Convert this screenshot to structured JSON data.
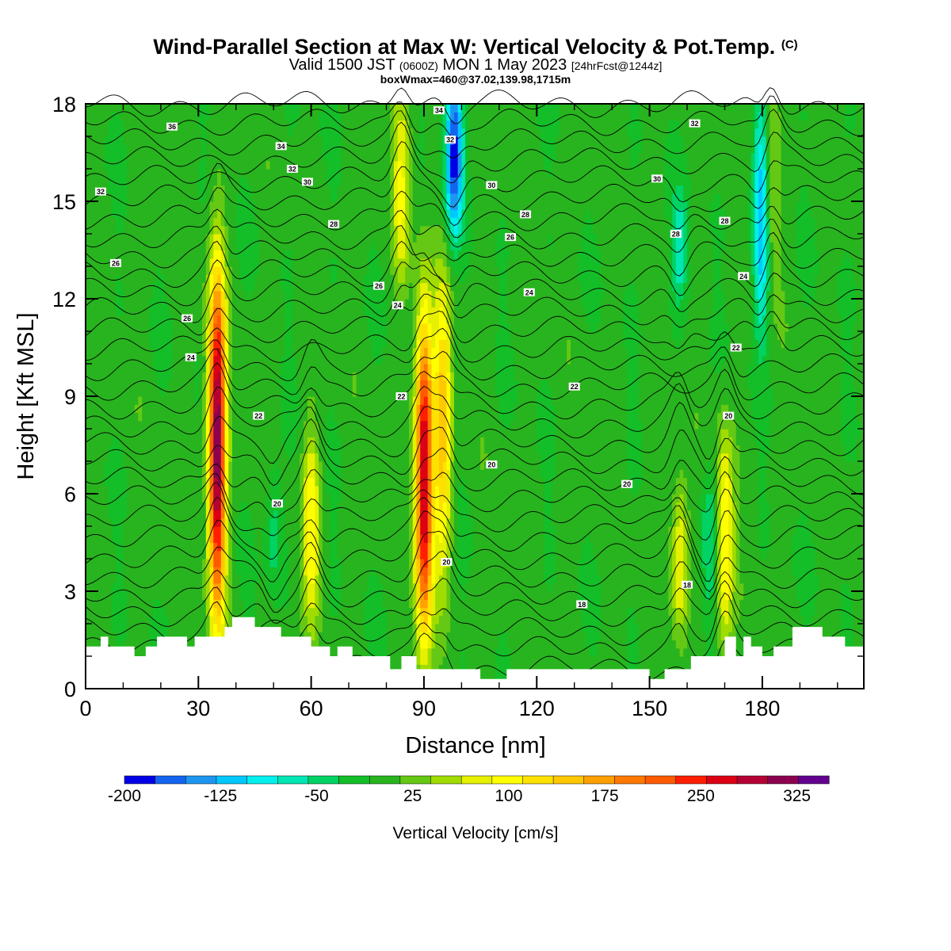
{
  "header": {
    "title": "Wind-Parallel Section at Max W: Vertical Velocity & Pot.Temp.",
    "title_tag": "(C)",
    "valid_a": "Valid 1500 JST",
    "valid_z": "(0600Z)",
    "valid_b": "MON 1 May 2023",
    "valid_fcst": "[24hrFcst@1244z]",
    "subtitle": "boxWmax=460@37.02,139.98,1715m"
  },
  "chart_data": {
    "type": "heatmap",
    "xlabel": "Distance [nm]",
    "ylabel": "Height [Kft MSL]",
    "xlim": [
      0,
      207
    ],
    "ylim": [
      0,
      18
    ],
    "xticks": [
      0,
      30,
      60,
      90,
      120,
      150,
      180
    ],
    "yticks": [
      0,
      3,
      6,
      9,
      12,
      15,
      18
    ],
    "colorbar": {
      "label": "Vertical Velocity [cm/s]",
      "tick_values": [
        -200,
        -125,
        -50,
        25,
        100,
        175,
        250,
        325
      ],
      "tick_labels": [
        "-200",
        "-125",
        "-50",
        "25",
        "100",
        "175",
        "250",
        "325"
      ],
      "min": -200,
      "max": 350,
      "step": 25,
      "colors": [
        "#0000e6",
        "#1464f0",
        "#1e96f0",
        "#00c8ff",
        "#00f0f0",
        "#00e6b4",
        "#00d264",
        "#14be28",
        "#28b41e",
        "#64c814",
        "#a0dc00",
        "#e6f000",
        "#ffff00",
        "#ffe100",
        "#ffc800",
        "#ffa000",
        "#ff7800",
        "#ff5a00",
        "#ff1e00",
        "#dc0014",
        "#b40032",
        "#8c0050",
        "#640090"
      ]
    },
    "updrafts": [
      {
        "x": 35,
        "z_bottom": 2.5,
        "z_top": 13.2,
        "peak": 340,
        "center_z": 7.5
      },
      {
        "x": 90,
        "z_bottom": 1.0,
        "z_top": 11.0,
        "peak": 310,
        "center_z": 6.5
      },
      {
        "x": 95,
        "z_bottom": 1.5,
        "z_top": 10.5,
        "peak": 150,
        "center_z": 8.0
      },
      {
        "x": 84,
        "z_bottom": 12.0,
        "z_top": 18.0,
        "peak": 90,
        "center_z": 15.5
      },
      {
        "x": 60,
        "z_bottom": 2.0,
        "z_top": 8.0,
        "peak": 110,
        "center_z": 5.0
      },
      {
        "x": 170,
        "z_bottom": 1.5,
        "z_top": 8.5,
        "peak": 120,
        "center_z": 4.5
      },
      {
        "x": 158,
        "z_bottom": 2.0,
        "z_top": 7.0,
        "peak": 100,
        "center_z": 4.0
      },
      {
        "x": 182,
        "z_bottom": 11.0,
        "z_top": 18.0,
        "peak": 80,
        "center_z": 15.5
      }
    ],
    "downdrafts": [
      {
        "x": 98,
        "z_bottom": 13.0,
        "z_top": 18.0,
        "peak": -190,
        "center_z": 16.5
      },
      {
        "x": 180,
        "z_bottom": 11.0,
        "z_top": 18.0,
        "peak": -150,
        "center_z": 14.5
      },
      {
        "x": 158,
        "z_bottom": 11.5,
        "z_top": 15.0,
        "peak": -70,
        "center_z": 13.5
      },
      {
        "x": 166,
        "z_bottom": 2.5,
        "z_top": 7.0,
        "peak": -60,
        "center_z": 4.5
      },
      {
        "x": 50,
        "z_bottom": 3.0,
        "z_top": 7.0,
        "peak": -50,
        "center_z": 5.0
      }
    ],
    "theta_labels": [
      {
        "text": "36",
        "x": 23,
        "z": 17.3
      },
      {
        "text": "34",
        "x": 52,
        "z": 16.7
      },
      {
        "text": "32",
        "x": 55,
        "z": 16.0
      },
      {
        "text": "30",
        "x": 59,
        "z": 15.6
      },
      {
        "text": "32",
        "x": 4,
        "z": 15.3
      },
      {
        "text": "28",
        "x": 66,
        "z": 14.3
      },
      {
        "text": "26",
        "x": 8,
        "z": 13.1
      },
      {
        "text": "26",
        "x": 78,
        "z": 12.4
      },
      {
        "text": "24",
        "x": 83,
        "z": 11.8
      },
      {
        "text": "26",
        "x": 27,
        "z": 11.4
      },
      {
        "text": "24",
        "x": 28,
        "z": 10.2
      },
      {
        "text": "22",
        "x": 84,
        "z": 9.0
      },
      {
        "text": "22",
        "x": 46,
        "z": 8.4
      },
      {
        "text": "20",
        "x": 51,
        "z": 5.7
      },
      {
        "text": "20",
        "x": 108,
        "z": 6.9
      },
      {
        "text": "20",
        "x": 96,
        "z": 3.9
      },
      {
        "text": "34",
        "x": 94,
        "z": 17.8
      },
      {
        "text": "32",
        "x": 97,
        "z": 16.9
      },
      {
        "text": "30",
        "x": 108,
        "z": 15.5
      },
      {
        "text": "28",
        "x": 117,
        "z": 14.6
      },
      {
        "text": "26",
        "x": 113,
        "z": 13.9
      },
      {
        "text": "24",
        "x": 118,
        "z": 12.2
      },
      {
        "text": "22",
        "x": 130,
        "z": 9.3
      },
      {
        "text": "20",
        "x": 144,
        "z": 6.3
      },
      {
        "text": "18",
        "x": 132,
        "z": 2.6
      },
      {
        "text": "18",
        "x": 160,
        "z": 3.2
      },
      {
        "text": "32",
        "x": 162,
        "z": 17.4
      },
      {
        "text": "30",
        "x": 152,
        "z": 15.7
      },
      {
        "text": "28",
        "x": 157,
        "z": 14.0
      },
      {
        "text": "28",
        "x": 170,
        "z": 14.4
      },
      {
        "text": "24",
        "x": 175,
        "z": 12.7
      },
      {
        "text": "22",
        "x": 173,
        "z": 10.5
      },
      {
        "text": "20",
        "x": 171,
        "z": 8.4
      }
    ],
    "terrain_profile": [
      [
        0,
        1.3
      ],
      [
        4,
        1.3
      ],
      [
        4,
        1.6
      ],
      [
        6,
        1.6
      ],
      [
        6,
        1.3
      ],
      [
        13,
        1.3
      ],
      [
        13,
        1.0
      ],
      [
        16,
        1.0
      ],
      [
        16,
        1.3
      ],
      [
        19,
        1.3
      ],
      [
        19,
        1.6
      ],
      [
        27,
        1.6
      ],
      [
        27,
        1.3
      ],
      [
        29,
        1.3
      ],
      [
        29,
        1.6
      ],
      [
        37,
        1.6
      ],
      [
        37,
        1.9
      ],
      [
        39,
        1.9
      ],
      [
        39,
        2.2
      ],
      [
        45,
        2.2
      ],
      [
        45,
        1.9
      ],
      [
        52,
        1.9
      ],
      [
        52,
        1.6
      ],
      [
        60,
        1.6
      ],
      [
        60,
        1.3
      ],
      [
        65,
        1.3
      ],
      [
        65,
        1.0
      ],
      [
        67,
        1.0
      ],
      [
        67,
        1.3
      ],
      [
        71,
        1.3
      ],
      [
        71,
        1.0
      ],
      [
        81,
        1.0
      ],
      [
        81,
        0.6
      ],
      [
        84,
        0.6
      ],
      [
        84,
        1.0
      ],
      [
        88,
        1.0
      ],
      [
        88,
        0.6
      ],
      [
        105,
        0.6
      ],
      [
        105,
        0.3
      ],
      [
        112,
        0.3
      ],
      [
        112,
        0.6
      ],
      [
        150,
        0.6
      ],
      [
        150,
        0.3
      ],
      [
        154,
        0.3
      ],
      [
        154,
        0.6
      ],
      [
        161,
        0.6
      ],
      [
        161,
        1.0
      ],
      [
        170,
        1.0
      ],
      [
        170,
        1.6
      ],
      [
        173,
        1.6
      ],
      [
        173,
        1.0
      ],
      [
        175,
        1.0
      ],
      [
        175,
        1.6
      ],
      [
        177,
        1.6
      ],
      [
        177,
        1.3
      ],
      [
        180,
        1.3
      ],
      [
        180,
        1.0
      ],
      [
        183,
        1.0
      ],
      [
        183,
        1.3
      ],
      [
        188,
        1.3
      ],
      [
        188,
        1.9
      ],
      [
        196,
        1.9
      ],
      [
        196,
        1.6
      ],
      [
        202,
        1.6
      ],
      [
        202,
        1.3
      ],
      [
        207,
        1.3
      ]
    ]
  }
}
